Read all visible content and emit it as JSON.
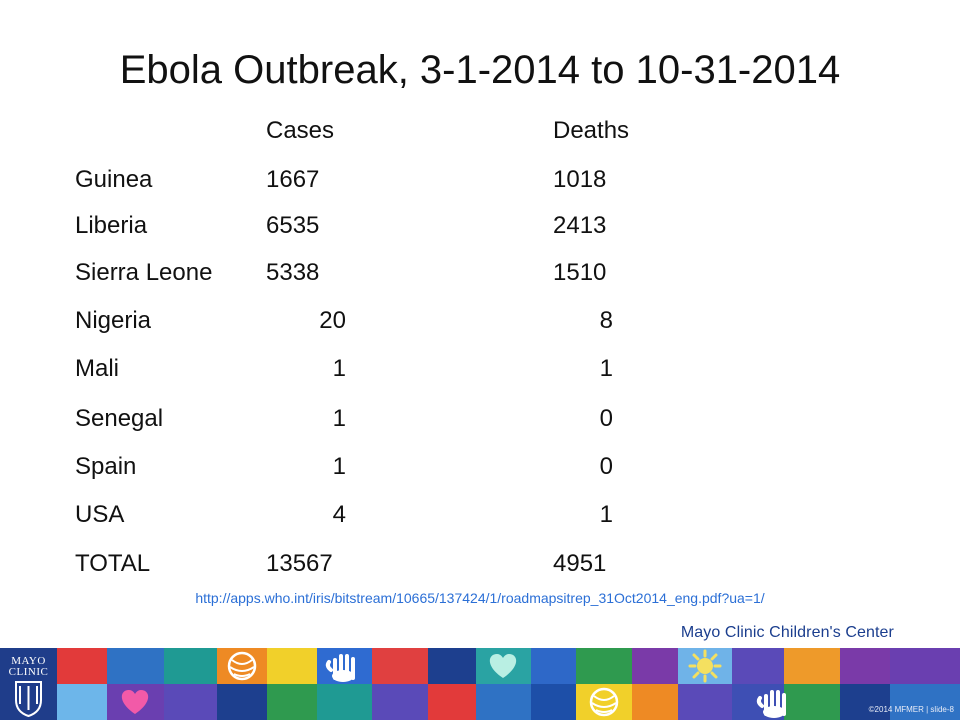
{
  "slide": {
    "title": "Ebola Outbreak, 3-1-2014 to 10-31-2014",
    "table": {
      "headers": [
        "",
        "Cases",
        "Deaths"
      ],
      "rows": [
        [
          "Guinea",
          "1667",
          "1018"
        ],
        [
          "Liberia",
          "6535",
          "2413"
        ],
        [
          "Sierra Leone",
          "5338",
          "1510"
        ],
        [
          "Nigeria",
          "20",
          "8"
        ],
        [
          "Mali",
          "1",
          "1"
        ],
        [
          "Senegal",
          "1",
          "0"
        ],
        [
          "Spain",
          "1",
          "0"
        ],
        [
          "USA",
          "4",
          "1"
        ],
        [
          "TOTAL",
          "13567",
          "4951"
        ]
      ]
    },
    "source_link": "http://apps.who.int/iris/bitstream/10665/137424/1/roadmapsitrep_31Oct2014_eng.pdf?ua=1/",
    "brand": "Mayo Clinic Children's Center",
    "logo": {
      "line1": "MAYO",
      "line2": "CLINIC"
    },
    "footer": "©2014 MFMER  |  slide-8"
  },
  "colors": {
    "logo_blue": "#1f3d8a",
    "link_blue": "#2b6fd6",
    "brand_blue": "#1b3e8e"
  },
  "banner_tiles": {
    "row1": [
      "red",
      "blue",
      "teal",
      "orange-yarn",
      "yellow",
      "blue-hand",
      "red",
      "navy",
      "teal-heart",
      "blue",
      "green",
      "purple",
      "yellow-sun",
      "violet",
      "orange",
      "purple"
    ],
    "row2": [
      "light-blue",
      "pink-heart",
      "violet",
      "navy",
      "green",
      "teal",
      "violet",
      "red",
      "blue",
      "blue",
      "yellow-yarn",
      "orange",
      "violet",
      "purple-hand",
      "green",
      "blue"
    ]
  }
}
